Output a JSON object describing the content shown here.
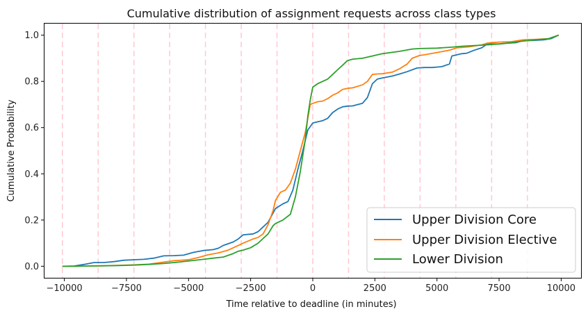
{
  "chart_data": {
    "type": "line",
    "title": "Cumulative distribution of assignment requests across class types",
    "xlabel": "Time relative to deadline (in minutes)",
    "ylabel": "Cumulative Probability",
    "xlim": [
      -10800,
      10800
    ],
    "ylim": [
      -0.05,
      1.05
    ],
    "xticks": [
      -10000,
      -7500,
      -5000,
      -2500,
      0,
      2500,
      5000,
      7500,
      10000
    ],
    "xtick_labels": [
      "−10000",
      "−7500",
      "−5000",
      "−2500",
      "0",
      "2500",
      "5000",
      "7500",
      "10000"
    ],
    "yticks": [
      0.0,
      0.2,
      0.4,
      0.6,
      0.8,
      1.0
    ],
    "ytick_labels": [
      "0.0",
      "0.2",
      "0.4",
      "0.6",
      "0.8",
      "1.0"
    ],
    "vlines": [
      -10080,
      -8640,
      -7200,
      -5760,
      -4320,
      -2880,
      -1440,
      0,
      1440,
      2880,
      4320,
      5760,
      7200,
      8640
    ],
    "vline_color": "#ffc9d0",
    "grid": false,
    "legend_position": "lower-right",
    "series": [
      {
        "name": "Upper Division Core",
        "color": "#1f77b4",
        "x": [
          -10080,
          -9600,
          -9200,
          -8800,
          -8400,
          -8000,
          -7600,
          -7200,
          -6800,
          -6400,
          -6000,
          -5600,
          -5200,
          -4800,
          -4400,
          -4000,
          -3800,
          -3600,
          -3200,
          -3000,
          -2800,
          -2400,
          -2200,
          -2000,
          -1800,
          -1500,
          -1200,
          -1000,
          -800,
          -600,
          -400,
          -200,
          0,
          200,
          400,
          600,
          800,
          1000,
          1200,
          1400,
          1600,
          2000,
          2200,
          2400,
          2600,
          2800,
          3200,
          3500,
          3800,
          4200,
          4500,
          4800,
          5000,
          5200,
          5500,
          5600,
          6000,
          6200,
          6500,
          6800,
          7000,
          7200,
          7500,
          7800,
          8200,
          8400,
          8600,
          9000,
          9300,
          9600,
          9900
        ],
        "y": [
          0.0,
          0.001,
          0.008,
          0.016,
          0.016,
          0.02,
          0.026,
          0.028,
          0.03,
          0.035,
          0.045,
          0.046,
          0.048,
          0.06,
          0.068,
          0.072,
          0.078,
          0.09,
          0.105,
          0.118,
          0.136,
          0.14,
          0.15,
          0.17,
          0.19,
          0.25,
          0.27,
          0.28,
          0.33,
          0.42,
          0.5,
          0.59,
          0.62,
          0.625,
          0.63,
          0.64,
          0.665,
          0.68,
          0.69,
          0.693,
          0.694,
          0.705,
          0.73,
          0.79,
          0.81,
          0.815,
          0.823,
          0.832,
          0.842,
          0.858,
          0.86,
          0.86,
          0.862,
          0.864,
          0.875,
          0.91,
          0.92,
          0.922,
          0.935,
          0.945,
          0.96,
          0.962,
          0.962,
          0.965,
          0.968,
          0.975,
          0.976,
          0.978,
          0.98,
          0.985,
          1.0
        ]
      },
      {
        "name": "Upper Division Elective",
        "color": "#ff7f0e",
        "x": [
          -10080,
          -9600,
          -9000,
          -8400,
          -7800,
          -7200,
          -6600,
          -6000,
          -5600,
          -5000,
          -4600,
          -4200,
          -3800,
          -3400,
          -3000,
          -2800,
          -2400,
          -2200,
          -2000,
          -1800,
          -1600,
          -1500,
          -1300,
          -1100,
          -900,
          -700,
          -500,
          -300,
          -200,
          -100,
          0,
          200,
          400,
          600,
          800,
          1000,
          1200,
          1400,
          1600,
          2000,
          2200,
          2400,
          2600,
          2800,
          3200,
          3500,
          3800,
          4000,
          4300,
          4500,
          5000,
          5500,
          5800,
          6300,
          6800,
          7000,
          7200,
          7500,
          8000,
          8300,
          8500,
          9000,
          9500,
          9900
        ],
        "y": [
          0.0,
          0.0,
          0.001,
          0.002,
          0.004,
          0.006,
          0.009,
          0.018,
          0.024,
          0.028,
          0.038,
          0.05,
          0.058,
          0.07,
          0.09,
          0.1,
          0.118,
          0.125,
          0.14,
          0.18,
          0.24,
          0.285,
          0.32,
          0.33,
          0.36,
          0.42,
          0.5,
          0.58,
          0.64,
          0.7,
          0.705,
          0.712,
          0.715,
          0.725,
          0.74,
          0.75,
          0.765,
          0.77,
          0.772,
          0.785,
          0.8,
          0.83,
          0.832,
          0.833,
          0.84,
          0.855,
          0.875,
          0.9,
          0.912,
          0.915,
          0.925,
          0.935,
          0.945,
          0.95,
          0.958,
          0.965,
          0.968,
          0.97,
          0.972,
          0.977,
          0.98,
          0.982,
          0.985,
          1.0
        ]
      },
      {
        "name": "Lower Division",
        "color": "#2ca02c",
        "x": [
          -10080,
          -9600,
          -9000,
          -8400,
          -7800,
          -7200,
          -6600,
          -6000,
          -5400,
          -4800,
          -4400,
          -4000,
          -3600,
          -3200,
          -3000,
          -2800,
          -2500,
          -2200,
          -2000,
          -1800,
          -1600,
          -1500,
          -1200,
          -900,
          -700,
          -500,
          -300,
          -200,
          -100,
          0,
          200,
          400,
          600,
          800,
          1000,
          1200,
          1400,
          1600,
          2000,
          2400,
          2800,
          3500,
          4000,
          4300,
          5000,
          5600,
          6000,
          6500,
          7000,
          7500,
          8000,
          8500,
          9000,
          9500,
          9900
        ],
        "y": [
          0.0,
          0.0,
          0.001,
          0.002,
          0.003,
          0.005,
          0.008,
          0.012,
          0.018,
          0.025,
          0.03,
          0.035,
          0.04,
          0.055,
          0.065,
          0.07,
          0.08,
          0.1,
          0.12,
          0.14,
          0.175,
          0.185,
          0.2,
          0.225,
          0.3,
          0.41,
          0.55,
          0.65,
          0.72,
          0.775,
          0.79,
          0.8,
          0.81,
          0.83,
          0.85,
          0.87,
          0.89,
          0.896,
          0.9,
          0.91,
          0.92,
          0.93,
          0.94,
          0.942,
          0.944,
          0.948,
          0.952,
          0.955,
          0.958,
          0.962,
          0.968,
          0.975,
          0.98,
          0.985,
          1.0
        ]
      }
    ]
  }
}
